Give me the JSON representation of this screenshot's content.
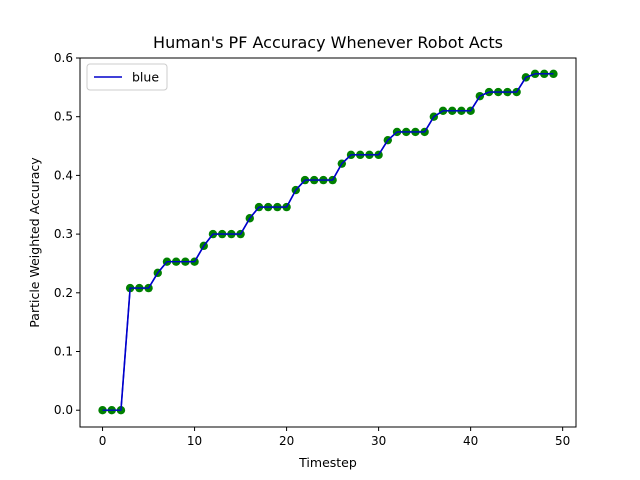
{
  "chart_data": {
    "type": "line",
    "title": "Human's PF Accuracy Whenever Robot Acts",
    "xlabel": "Timestep",
    "ylabel": "Particle Weighted Accuracy",
    "xlim": [
      -2.45,
      51.45
    ],
    "ylim": [
      -0.0286,
      0.6
    ],
    "x_ticks": [
      0,
      10,
      20,
      30,
      40,
      50
    ],
    "y_ticks": [
      0.0,
      0.1,
      0.2,
      0.3,
      0.4,
      0.5,
      0.6
    ],
    "x_tick_labels": [
      "0",
      "10",
      "20",
      "30",
      "40",
      "50"
    ],
    "y_tick_labels": [
      "0.0",
      "0.1",
      "0.2",
      "0.3",
      "0.4",
      "0.5",
      "0.6"
    ],
    "grid": false,
    "legend": {
      "position": "top-left",
      "entries": [
        "blue"
      ]
    },
    "series": [
      {
        "name": "blue",
        "line_color": "#0000cc",
        "marker_color": "#008000",
        "x": [
          0,
          1,
          2,
          3,
          4,
          5,
          6,
          7,
          8,
          9,
          10,
          11,
          12,
          13,
          14,
          15,
          16,
          17,
          18,
          19,
          20,
          21,
          22,
          23,
          24,
          25,
          26,
          27,
          28,
          29,
          30,
          31,
          32,
          33,
          34,
          35,
          36,
          37,
          38,
          39,
          40,
          41,
          42,
          43,
          44,
          45,
          46,
          47,
          48,
          49
        ],
        "values": [
          0.0,
          0.0,
          0.0,
          0.208,
          0.208,
          0.208,
          0.234,
          0.253,
          0.253,
          0.253,
          0.253,
          0.28,
          0.3,
          0.3,
          0.3,
          0.3,
          0.327,
          0.346,
          0.346,
          0.346,
          0.346,
          0.375,
          0.392,
          0.392,
          0.392,
          0.392,
          0.42,
          0.435,
          0.435,
          0.435,
          0.435,
          0.46,
          0.474,
          0.474,
          0.474,
          0.474,
          0.5,
          0.51,
          0.51,
          0.51,
          0.51,
          0.535,
          0.542,
          0.542,
          0.542,
          0.542,
          0.567,
          0.573,
          0.573,
          0.573
        ]
      }
    ]
  }
}
